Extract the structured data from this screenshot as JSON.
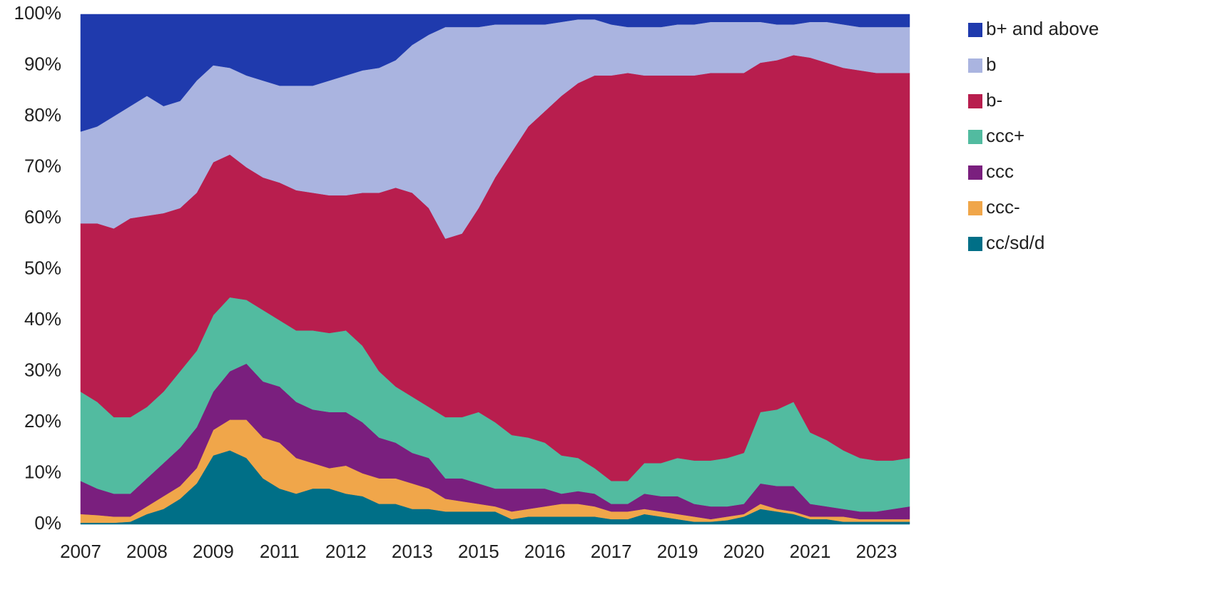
{
  "chart_data": {
    "type": "stacked_area",
    "categories": [
      "2007",
      null,
      null,
      null,
      "2008",
      null,
      null,
      null,
      "2009",
      null,
      null,
      null,
      "2011",
      null,
      null,
      null,
      "2012",
      null,
      null,
      null,
      "2013",
      null,
      null,
      null,
      "2015",
      null,
      null,
      null,
      "2016",
      null,
      null,
      null,
      "2017",
      null,
      null,
      null,
      "2019",
      null,
      null,
      null,
      "2020",
      null,
      null,
      null,
      "2021",
      null,
      null,
      null,
      "2023",
      null,
      null
    ],
    "series": [
      {
        "name": "cc/sd/d",
        "color": "#006f87",
        "values": [
          0.3,
          0.3,
          0.3,
          0.5,
          2,
          3,
          5,
          8,
          13.5,
          14.5,
          13,
          9,
          7,
          6,
          7,
          7,
          6,
          5.5,
          4,
          4,
          3,
          3,
          2.5,
          2.5,
          2.5,
          2.5,
          1,
          1.5,
          1.5,
          1.5,
          1.5,
          1.5,
          1,
          1,
          2,
          1.5,
          1,
          0.5,
          0.5,
          0.8,
          1.5,
          3,
          2.5,
          2,
          1,
          1,
          0.5,
          0.5,
          0.5,
          0.5,
          0.5
        ]
      },
      {
        "name": "ccc-",
        "color": "#f0a64a",
        "values": [
          1.7,
          1.5,
          1.2,
          1,
          1.5,
          2.5,
          2.5,
          3,
          5,
          6,
          7.5,
          8,
          9,
          7,
          5,
          4,
          5.5,
          4.5,
          5,
          5,
          5,
          4,
          2.5,
          2,
          1.5,
          1,
          1.5,
          1.5,
          2,
          2.5,
          2.5,
          2,
          1.5,
          1.5,
          1,
          1,
          1,
          1,
          0.5,
          0.7,
          0.5,
          1,
          0.5,
          0.5,
          0.5,
          0.5,
          1,
          0.5,
          0.5,
          0.5,
          0.5
        ]
      },
      {
        "name": "ccc",
        "color": "#7a1f7e",
        "values": [
          6.5,
          5.2,
          4.5,
          4.5,
          5.5,
          6.5,
          7.5,
          8,
          7.5,
          9.5,
          11,
          11,
          11,
          11,
          10.5,
          11,
          10.5,
          10,
          8,
          7,
          6,
          6,
          4,
          4.5,
          4,
          3.5,
          4.5,
          4,
          3.5,
          2,
          2.5,
          2.5,
          1.5,
          1.5,
          3,
          3,
          3.5,
          2.5,
          2.5,
          2,
          2,
          4,
          4.5,
          5,
          2.5,
          2,
          1.5,
          1.5,
          1.5,
          2,
          2.5
        ]
      },
      {
        "name": "ccc+",
        "color": "#52bba0",
        "values": [
          17.5,
          17,
          15,
          15,
          14,
          14,
          15,
          15,
          15,
          14.5,
          12.5,
          14,
          13,
          14,
          15.5,
          15.5,
          16,
          15,
          13,
          11,
          11,
          10,
          12,
          12,
          14,
          13,
          10.5,
          10,
          9,
          7.5,
          6.5,
          5,
          4.5,
          4.5,
          6,
          6.5,
          7.5,
          8.5,
          9,
          9.5,
          10,
          14,
          15,
          16.5,
          14,
          13,
          11.5,
          10.5,
          10,
          9.5,
          9.5
        ]
      },
      {
        "name": "b-",
        "color": "#b81e4e",
        "values": [
          33,
          35,
          37,
          39,
          37.5,
          35,
          32,
          31,
          30,
          28,
          26,
          26,
          27,
          27.5,
          27,
          27,
          26.5,
          30,
          35,
          39,
          40,
          39,
          35,
          36,
          40,
          48,
          55.5,
          61,
          65,
          70.5,
          73.5,
          77,
          79.5,
          80,
          76,
          76,
          75,
          75.5,
          76,
          75.5,
          74.5,
          68.5,
          68.5,
          68,
          73.5,
          74,
          75,
          76,
          76,
          76,
          75.5
        ]
      },
      {
        "name": "b",
        "color": "#aab4e0",
        "values": [
          18,
          19,
          22,
          22,
          23.5,
          21,
          21,
          22,
          19,
          17,
          18,
          19,
          19,
          20.5,
          21,
          22.5,
          23.5,
          24,
          24.5,
          25,
          29,
          34,
          41.5,
          40.5,
          35.5,
          30,
          25,
          20,
          17,
          14.5,
          12.5,
          11,
          10,
          9,
          9.5,
          9.5,
          10,
          10,
          10,
          10,
          10,
          8,
          7,
          6,
          7,
          8,
          8.5,
          8.5,
          9,
          9,
          9
        ]
      },
      {
        "name": "b+ and above",
        "color": "#1f3aad",
        "values": [
          23,
          22,
          20,
          18,
          16,
          18,
          17,
          13,
          10,
          10.5,
          12,
          13,
          14,
          14,
          14,
          13,
          12,
          11,
          10.5,
          9,
          6,
          4,
          2.5,
          2.5,
          2.5,
          2,
          2,
          2,
          2,
          1.5,
          1,
          1,
          2,
          2.5,
          2.5,
          2.5,
          2,
          2,
          1.5,
          1.5,
          1.5,
          1.5,
          2,
          2,
          1.5,
          1.5,
          2,
          2.5,
          2.5,
          2.5,
          2.5
        ]
      }
    ],
    "ylim": [
      0,
      100
    ],
    "yticks": [
      {
        "value": 0,
        "label": "0%"
      },
      {
        "value": 10,
        "label": "10%"
      },
      {
        "value": 20,
        "label": "20%"
      },
      {
        "value": 30,
        "label": "30%"
      },
      {
        "value": 40,
        "label": "40%"
      },
      {
        "value": 50,
        "label": "50%"
      },
      {
        "value": 60,
        "label": "60%"
      },
      {
        "value": 70,
        "label": "70%"
      },
      {
        "value": 80,
        "label": "80%"
      },
      {
        "value": 90,
        "label": "90%"
      },
      {
        "value": 100,
        "label": "100%"
      }
    ],
    "grid": false,
    "legend": "right"
  }
}
